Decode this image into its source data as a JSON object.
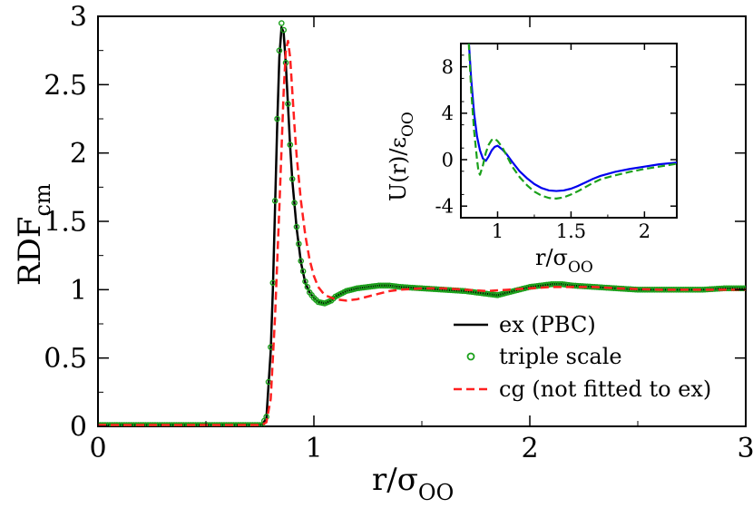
{
  "chart_data": [
    {
      "id": "main",
      "type": "line",
      "xlim": [
        0,
        3
      ],
      "ylim": [
        0,
        3
      ],
      "xticks": [
        0,
        1,
        2,
        3
      ],
      "xtick_labels": [
        "0",
        "1",
        "2",
        "3"
      ],
      "yticks": [
        0,
        0.5,
        1,
        1.5,
        2,
        2.5,
        3
      ],
      "ytick_labels": [
        "0",
        "0.5",
        "1",
        "1.5",
        "2",
        "2.5",
        "3"
      ],
      "xlabel": {
        "main": "r/σ",
        "sub": "OO"
      },
      "ylabel": {
        "main": "RDF",
        "sub": "cm"
      },
      "legend_position": "bottom-right",
      "series": [
        {
          "name": "ex (PBC)",
          "style": "solid-line",
          "color": "#000000",
          "x": [
            0,
            0.76,
            0.78,
            0.8,
            0.81,
            0.82,
            0.83,
            0.84,
            0.85,
            0.86,
            0.87,
            0.88,
            0.89,
            0.9,
            0.92,
            0.94,
            0.96,
            0.98,
            1.0,
            1.02,
            1.05,
            1.08,
            1.1,
            1.15,
            1.2,
            1.25,
            1.3,
            1.35,
            1.4,
            1.5,
            1.6,
            1.7,
            1.8,
            1.85,
            1.9,
            2.0,
            2.1,
            2.15,
            2.2,
            2.3,
            2.4,
            2.5,
            2.6,
            2.7,
            2.8,
            2.9,
            3.0
          ],
          "y": [
            0.01,
            0.01,
            0.06,
            0.55,
            1.0,
            1.6,
            2.2,
            2.7,
            2.92,
            2.88,
            2.65,
            2.35,
            2.05,
            1.8,
            1.45,
            1.2,
            1.05,
            0.98,
            0.94,
            0.91,
            0.9,
            0.92,
            0.95,
            0.99,
            1.01,
            1.02,
            1.03,
            1.03,
            1.02,
            1.01,
            1.0,
            0.99,
            0.97,
            0.96,
            0.98,
            1.02,
            1.04,
            1.04,
            1.03,
            1.02,
            1.01,
            1.0,
            1.0,
            1.0,
            1.0,
            1.01,
            1.01
          ]
        },
        {
          "name": "triple scale",
          "style": "open-circles",
          "color": "#1aa01a",
          "x": [
            0,
            0.76,
            0.78,
            0.8,
            0.81,
            0.82,
            0.83,
            0.84,
            0.85,
            0.86,
            0.87,
            0.88,
            0.89,
            0.9,
            0.92,
            0.94,
            0.96,
            0.98,
            1.0,
            1.02,
            1.05,
            1.08,
            1.1,
            1.15,
            1.2,
            1.25,
            1.3,
            1.35,
            1.4,
            1.5,
            1.6,
            1.7,
            1.8,
            1.85,
            1.9,
            2.0,
            2.1,
            2.15,
            2.2,
            2.3,
            2.4,
            2.5,
            2.6,
            2.7,
            2.8,
            2.9,
            3.0
          ],
          "y": [
            0.01,
            0.01,
            0.07,
            0.58,
            1.05,
            1.65,
            2.25,
            2.75,
            2.95,
            2.9,
            2.66,
            2.36,
            2.06,
            1.81,
            1.46,
            1.21,
            1.06,
            0.98,
            0.94,
            0.91,
            0.9,
            0.92,
            0.95,
            0.99,
            1.01,
            1.02,
            1.03,
            1.03,
            1.02,
            1.01,
            1.0,
            0.99,
            0.97,
            0.96,
            0.98,
            1.02,
            1.04,
            1.04,
            1.03,
            1.02,
            1.01,
            1.0,
            1.0,
            1.0,
            1.0,
            1.01,
            1.01
          ]
        },
        {
          "name": "cg (not fitted to ex)",
          "style": "dashed-line",
          "color": "#ff2020",
          "x": [
            0,
            0.76,
            0.78,
            0.8,
            0.82,
            0.84,
            0.86,
            0.87,
            0.88,
            0.89,
            0.9,
            0.91,
            0.92,
            0.94,
            0.96,
            0.98,
            1.0,
            1.02,
            1.05,
            1.1,
            1.15,
            1.2,
            1.25,
            1.3,
            1.35,
            1.4,
            1.5,
            1.6,
            1.7,
            1.8,
            1.9,
            2.0,
            2.1,
            2.2,
            2.3,
            2.4,
            2.6,
            2.8,
            3.0
          ],
          "y": [
            0.01,
            0.01,
            0.03,
            0.2,
            0.8,
            1.6,
            2.45,
            2.75,
            2.82,
            2.7,
            2.45,
            2.2,
            1.98,
            1.65,
            1.4,
            1.22,
            1.1,
            1.02,
            0.96,
            0.93,
            0.92,
            0.93,
            0.95,
            0.97,
            0.99,
            1.0,
            1.01,
            1.01,
            1.0,
            0.99,
            1.0,
            1.01,
            1.02,
            1.02,
            1.02,
            1.01,
            1.0,
            1.0,
            1.0
          ]
        }
      ]
    },
    {
      "id": "inset",
      "type": "line",
      "xlim": [
        0.75,
        2.22
      ],
      "ylim": [
        -5,
        10
      ],
      "xticks": [
        1,
        1.5,
        2
      ],
      "xtick_labels": [
        "1",
        "1.5",
        "2"
      ],
      "yticks": [
        -4,
        0,
        4,
        8
      ],
      "ytick_labels": [
        "-4",
        "0",
        "4",
        "8"
      ],
      "xlabel": {
        "main": "r/σ",
        "sub": "OO"
      },
      "ylabel": {
        "main": "U(r)/ε",
        "sub": "OO"
      },
      "series": [
        {
          "name": "blue solid",
          "style": "solid-line",
          "color": "#0000ee",
          "x": [
            0.8,
            0.82,
            0.84,
            0.86,
            0.88,
            0.9,
            0.92,
            0.94,
            0.96,
            0.98,
            1.0,
            1.03,
            1.06,
            1.1,
            1.15,
            1.2,
            1.25,
            1.3,
            1.35,
            1.4,
            1.45,
            1.5,
            1.55,
            1.6,
            1.65,
            1.7,
            1.8,
            1.9,
            2.0,
            2.1,
            2.22
          ],
          "y": [
            11,
            7,
            4,
            2,
            0.8,
            0.1,
            -0.1,
            0.3,
            0.8,
            1.1,
            1.2,
            0.9,
            0.5,
            -0.2,
            -1.0,
            -1.6,
            -2.1,
            -2.45,
            -2.65,
            -2.7,
            -2.65,
            -2.5,
            -2.25,
            -1.95,
            -1.65,
            -1.4,
            -1.05,
            -0.8,
            -0.6,
            -0.4,
            -0.25
          ]
        },
        {
          "name": "green dashed",
          "style": "dashed-line",
          "color": "#1aa01a",
          "x": [
            0.8,
            0.82,
            0.84,
            0.86,
            0.87,
            0.88,
            0.9,
            0.92,
            0.94,
            0.96,
            0.98,
            1.0,
            1.03,
            1.06,
            1.1,
            1.15,
            1.2,
            1.25,
            1.3,
            1.35,
            1.4,
            1.45,
            1.5,
            1.55,
            1.6,
            1.65,
            1.7,
            1.8,
            1.9,
            2.0,
            2.1,
            2.22
          ],
          "y": [
            11,
            6,
            2.5,
            0.0,
            -1.0,
            -1.3,
            -0.5,
            0.6,
            1.3,
            1.7,
            1.8,
            1.6,
            1.1,
            0.4,
            -0.6,
            -1.5,
            -2.2,
            -2.75,
            -3.1,
            -3.3,
            -3.35,
            -3.25,
            -3.0,
            -2.7,
            -2.35,
            -2.0,
            -1.7,
            -1.35,
            -1.05,
            -0.8,
            -0.6,
            -0.35
          ]
        }
      ]
    }
  ]
}
